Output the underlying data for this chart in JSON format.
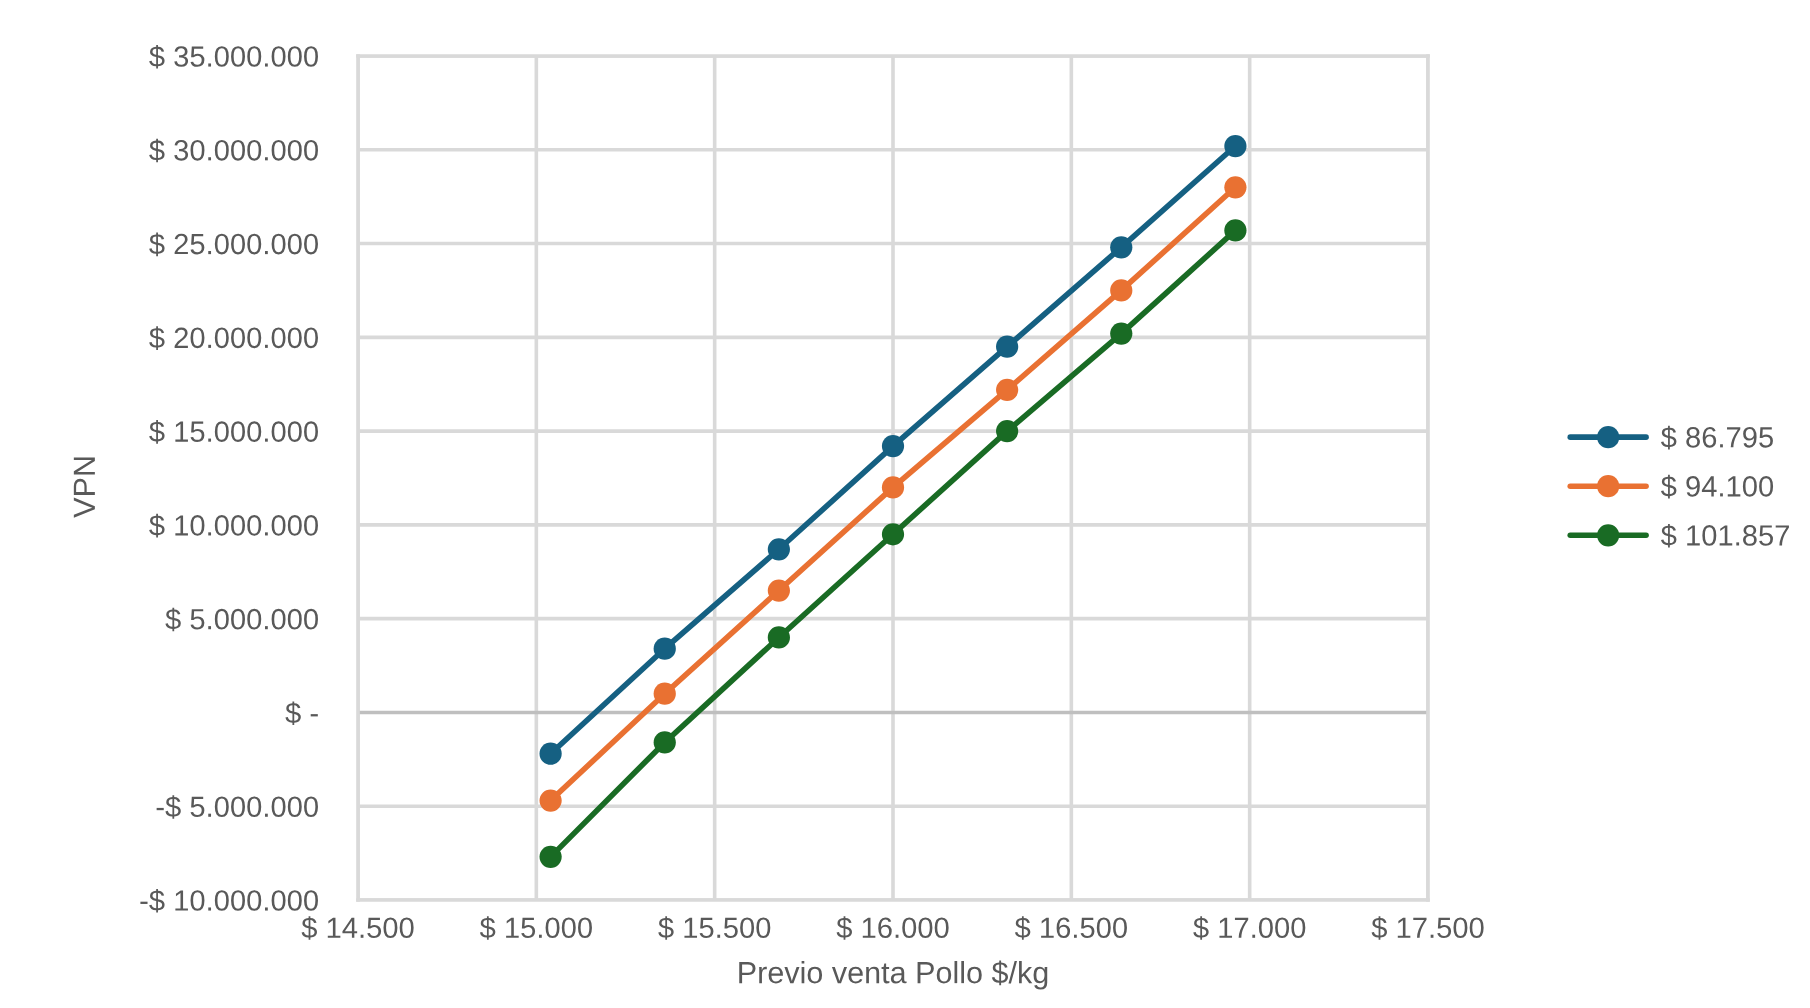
{
  "chart_data": {
    "type": "line",
    "xlabel": "Previo venta Pollo $/kg",
    "ylabel": "VPN",
    "x": [
      15040,
      15360,
      15680,
      16000,
      16320,
      16640,
      16960
    ],
    "series": [
      {
        "name": "$ 86.795",
        "color": "#156082",
        "values": [
          -2200000,
          3400000,
          8700000,
          14200000,
          19500000,
          24800000,
          30200000
        ]
      },
      {
        "name": "$ 94.100",
        "color": "#e97132",
        "values": [
          -4700000,
          1000000,
          6500000,
          12000000,
          17200000,
          22500000,
          28000000
        ]
      },
      {
        "name": "$ 101.857",
        "color": "#196b24",
        "values": [
          -7700000,
          -1600000,
          4000000,
          9500000,
          15000000,
          20200000,
          25700000
        ]
      }
    ],
    "xlim": [
      14500,
      17500
    ],
    "xticks": [
      {
        "value": 14500,
        "label": "$ 14.500"
      },
      {
        "value": 15000,
        "label": "$ 15.000"
      },
      {
        "value": 15500,
        "label": "$ 15.500"
      },
      {
        "value": 16000,
        "label": "$ 16.000"
      },
      {
        "value": 16500,
        "label": "$ 16.500"
      },
      {
        "value": 17000,
        "label": "$ 17.000"
      },
      {
        "value": 17500,
        "label": "$ 17.500"
      }
    ],
    "ylim": [
      -10000000,
      35000000
    ],
    "yticks": [
      {
        "value": -10000000,
        "label": "-$ 10.000.000"
      },
      {
        "value": -5000000,
        "label": "-$ 5.000.000"
      },
      {
        "value": 0,
        "label": "$ -"
      },
      {
        "value": 5000000,
        "label": "$ 5.000.000"
      },
      {
        "value": 10000000,
        "label": "$ 10.000.000"
      },
      {
        "value": 15000000,
        "label": "$ 15.000.000"
      },
      {
        "value": 20000000,
        "label": "$ 20.000.000"
      },
      {
        "value": 25000000,
        "label": "$ 25.000.000"
      },
      {
        "value": 30000000,
        "label": "$ 30.000.000"
      },
      {
        "value": 35000000,
        "label": "$ 35.000.000"
      }
    ],
    "grid": true,
    "legend": "right",
    "marker": "circle",
    "line_style": "solid"
  }
}
